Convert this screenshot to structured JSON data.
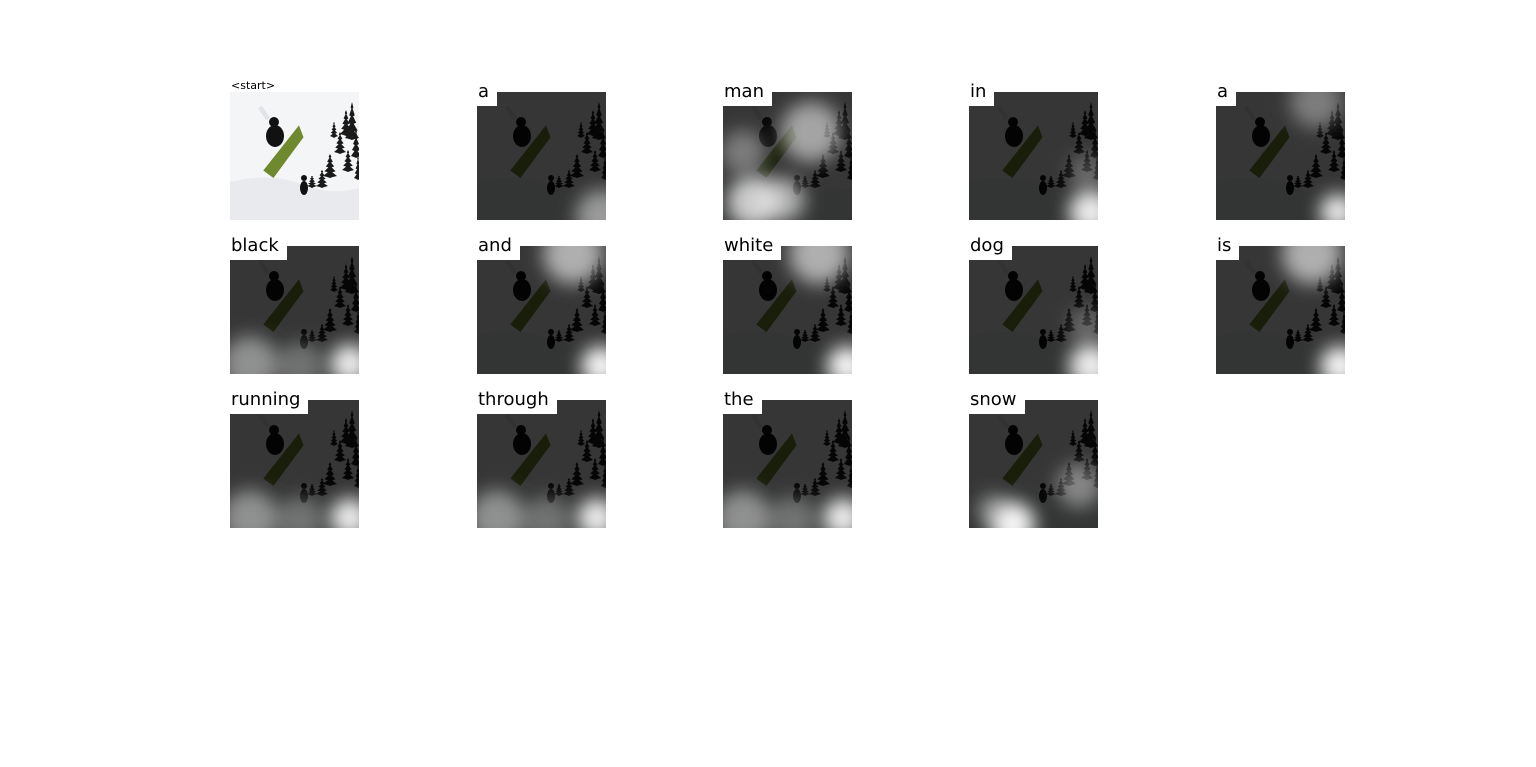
{
  "caption": {
    "start_token": "<start>",
    "words": [
      "a",
      "man",
      "in",
      "a",
      "black",
      "and",
      "white",
      "dog",
      "is",
      "running",
      "through",
      "the",
      "snow"
    ]
  },
  "colors": {
    "background": "#ffffff",
    "overlay": "#000000",
    "snow": "#f4f5f7",
    "board": "#6f8a2e",
    "rider": "#111111",
    "trees": "#1a1a1a"
  }
}
